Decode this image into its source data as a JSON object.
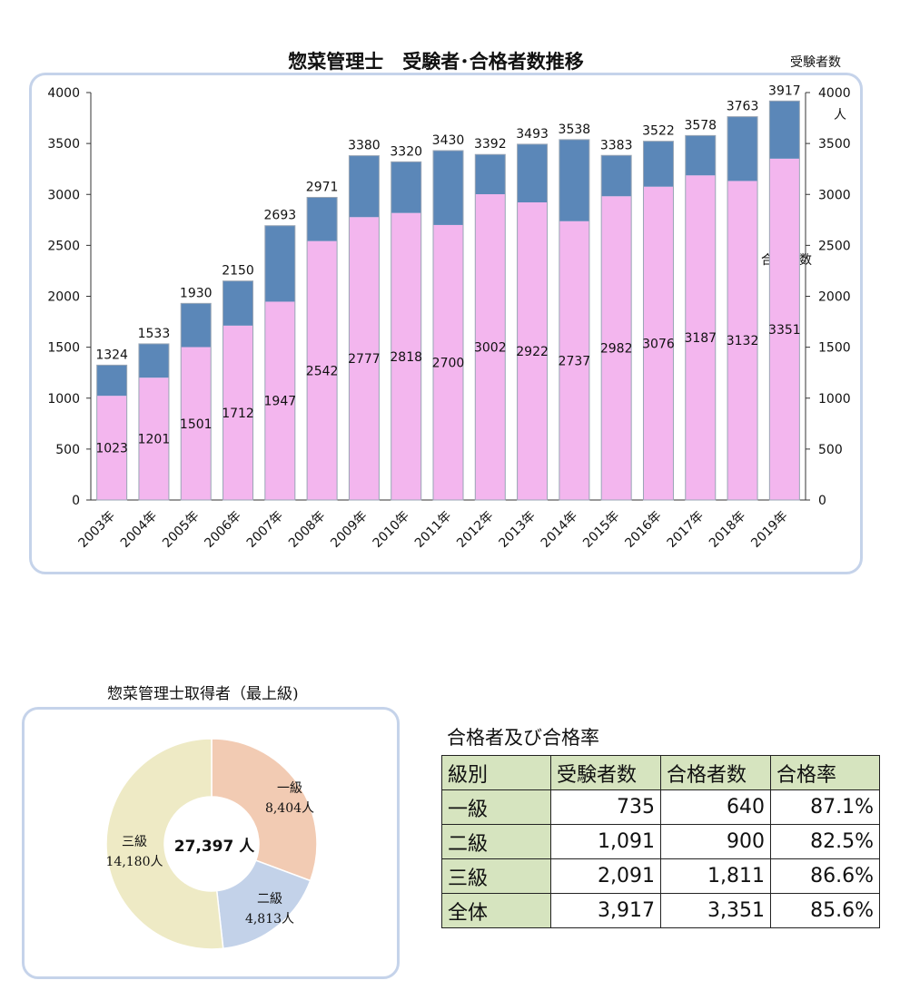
{
  "chart_data": [
    {
      "type": "bar",
      "title": "惣菜管理士　受験者･合格者数推移",
      "categories": [
        "2003年",
        "2004年",
        "2005年",
        "2006年",
        "2007年",
        "2008年",
        "2009年",
        "2010年",
        "2011年",
        "2012年",
        "2013年",
        "2014年",
        "2015年",
        "2016年",
        "2017年",
        "2018年",
        "2019年"
      ],
      "series": [
        {
          "name": "受験者数",
          "values": [
            1324,
            1533,
            1930,
            2150,
            2693,
            2971,
            3380,
            3320,
            3430,
            3392,
            3493,
            3538,
            3383,
            3522,
            3578,
            3763,
            3917
          ],
          "color": "#5b87b8"
        },
        {
          "name": "合格者数",
          "values": [
            1023,
            1201,
            1501,
            1712,
            1947,
            2542,
            2777,
            2818,
            2700,
            3002,
            2922,
            2737,
            2982,
            3076,
            3187,
            3132,
            3351
          ],
          "color": "#f3b6ee"
        }
      ],
      "ylim": [
        0,
        4000
      ],
      "yticks": [
        "0",
        "500",
        "1000",
        "1500",
        "2000",
        "2500",
        "3000",
        "3500",
        "4000"
      ],
      "right_axis_caption": "受験者数",
      "right_axis_unit": "人",
      "pass_series_label": "合格者数",
      "grid": false
    },
    {
      "type": "pie",
      "title": "惣菜管理士取得者（最上級)",
      "total_label": "27,397 人",
      "slices": [
        {
          "name": "一級",
          "value": 8404,
          "label": "8,404人",
          "color": "#f2cbb3"
        },
        {
          "name": "二級",
          "value": 4813,
          "label": "4,813人",
          "color": "#c3d2e9"
        },
        {
          "name": "三級",
          "value": 14180,
          "label": "14,180人",
          "color": "#eeeac5"
        }
      ]
    }
  ],
  "table": {
    "title": "合格者及び合格率",
    "headers": [
      "級別",
      "受験者数",
      "合格者数",
      "合格率"
    ],
    "rows": [
      [
        "一級",
        "735",
        "640",
        "87.1%"
      ],
      [
        "二級",
        "1,091",
        "900",
        "82.5%"
      ],
      [
        "三級",
        "2,091",
        "1,811",
        "86.6%"
      ],
      [
        "全体",
        "3,917",
        "3,351",
        "85.6%"
      ]
    ]
  }
}
